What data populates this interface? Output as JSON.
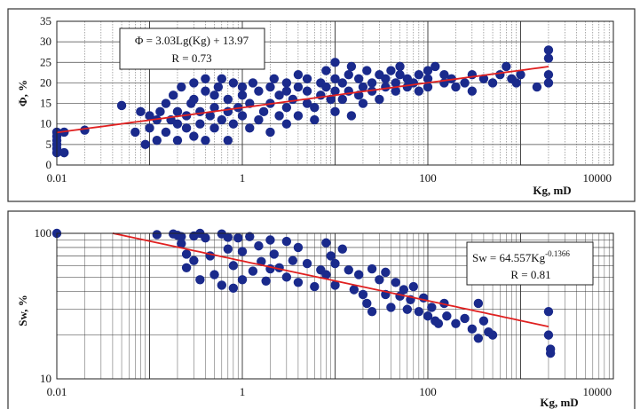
{
  "chart_data": [
    {
      "type": "scatter",
      "equation": "Φ = 3.03Lg(Kg) + 13.97",
      "r_label": "R = 0.73",
      "ylabel": "Φ, %",
      "xlabel": "Kg, mD",
      "xscale": "log",
      "xlim": [
        0.01,
        10000
      ],
      "ylim": [
        0,
        35
      ],
      "xticks": [
        "0.01",
        "1",
        "100",
        "10000"
      ],
      "yticks": [
        "0",
        "5",
        "10",
        "15",
        "20",
        "25",
        "30",
        "35"
      ],
      "grid": true,
      "trendline": {
        "a": 3.03,
        "b": 13.97,
        "from": 0.01,
        "to": 2000
      },
      "colors": {
        "points": "#1a2a8c",
        "trend": "#e02020"
      },
      "points": [
        [
          0.01,
          3
        ],
        [
          0.01,
          4
        ],
        [
          0.01,
          5
        ],
        [
          0.01,
          6
        ],
        [
          0.01,
          7
        ],
        [
          0.01,
          8
        ],
        [
          0.012,
          3
        ],
        [
          0.012,
          8
        ],
        [
          0.02,
          8.5
        ],
        [
          0.05,
          14.5
        ],
        [
          0.07,
          8
        ],
        [
          0.08,
          13
        ],
        [
          0.09,
          5
        ],
        [
          0.1,
          9
        ],
        [
          0.1,
          12
        ],
        [
          0.12,
          6
        ],
        [
          0.12,
          11
        ],
        [
          0.13,
          13
        ],
        [
          0.15,
          8
        ],
        [
          0.15,
          15
        ],
        [
          0.17,
          11
        ],
        [
          0.18,
          17
        ],
        [
          0.2,
          6
        ],
        [
          0.2,
          10
        ],
        [
          0.2,
          13
        ],
        [
          0.22,
          19
        ],
        [
          0.25,
          9
        ],
        [
          0.25,
          12
        ],
        [
          0.28,
          15
        ],
        [
          0.3,
          7
        ],
        [
          0.3,
          16
        ],
        [
          0.3,
          20
        ],
        [
          0.35,
          10
        ],
        [
          0.35,
          13
        ],
        [
          0.4,
          6
        ],
        [
          0.4,
          18
        ],
        [
          0.4,
          21
        ],
        [
          0.45,
          12
        ],
        [
          0.5,
          9
        ],
        [
          0.5,
          14
        ],
        [
          0.5,
          17
        ],
        [
          0.55,
          19
        ],
        [
          0.6,
          11
        ],
        [
          0.6,
          21
        ],
        [
          0.7,
          6
        ],
        [
          0.7,
          13
        ],
        [
          0.7,
          16
        ],
        [
          0.8,
          20
        ],
        [
          0.8,
          10
        ],
        [
          0.9,
          14
        ],
        [
          1,
          12
        ],
        [
          1,
          17
        ],
        [
          1,
          19
        ],
        [
          1.2,
          9
        ],
        [
          1.2,
          15
        ],
        [
          1.3,
          20
        ],
        [
          1.5,
          11
        ],
        [
          1.5,
          18
        ],
        [
          1.7,
          13
        ],
        [
          2,
          8
        ],
        [
          2,
          15
        ],
        [
          2,
          19
        ],
        [
          2.2,
          21
        ],
        [
          2.5,
          12
        ],
        [
          2.5,
          17
        ],
        [
          3,
          10
        ],
        [
          3,
          14
        ],
        [
          3,
          18
        ],
        [
          3,
          20
        ],
        [
          3.5,
          16
        ],
        [
          4,
          12
        ],
        [
          4,
          19
        ],
        [
          4,
          22
        ],
        [
          5,
          15
        ],
        [
          5,
          18
        ],
        [
          5,
          21
        ],
        [
          6,
          11
        ],
        [
          6,
          14
        ],
        [
          7,
          17
        ],
        [
          7,
          20
        ],
        [
          8,
          19
        ],
        [
          8,
          23
        ],
        [
          9,
          16
        ],
        [
          10,
          13
        ],
        [
          10,
          18
        ],
        [
          10,
          21
        ],
        [
          10,
          25
        ],
        [
          12,
          16
        ],
        [
          12,
          20
        ],
        [
          14,
          18
        ],
        [
          14,
          22
        ],
        [
          15,
          12
        ],
        [
          15,
          24
        ],
        [
          18,
          17
        ],
        [
          18,
          21
        ],
        [
          20,
          15
        ],
        [
          20,
          19
        ],
        [
          22,
          23
        ],
        [
          25,
          20
        ],
        [
          25,
          18
        ],
        [
          30,
          16
        ],
        [
          30,
          22
        ],
        [
          35,
          19
        ],
        [
          35,
          21
        ],
        [
          40,
          23
        ],
        [
          45,
          18
        ],
        [
          45,
          20
        ],
        [
          50,
          22
        ],
        [
          50,
          24
        ],
        [
          60,
          19
        ],
        [
          60,
          21
        ],
        [
          70,
          20
        ],
        [
          80,
          22
        ],
        [
          80,
          18
        ],
        [
          100,
          19
        ],
        [
          100,
          21
        ],
        [
          100,
          23
        ],
        [
          120,
          24
        ],
        [
          150,
          20
        ],
        [
          150,
          22
        ],
        [
          180,
          21
        ],
        [
          200,
          19
        ],
        [
          250,
          20
        ],
        [
          300,
          18
        ],
        [
          300,
          22
        ],
        [
          400,
          21
        ],
        [
          500,
          20
        ],
        [
          600,
          22
        ],
        [
          700,
          24
        ],
        [
          800,
          21
        ],
        [
          900,
          20
        ],
        [
          1000,
          22
        ],
        [
          1500,
          19
        ],
        [
          2000,
          20
        ],
        [
          2000,
          22
        ],
        [
          2000,
          26
        ],
        [
          2000,
          28
        ]
      ]
    },
    {
      "type": "scatter",
      "equation_base": "Sw = 64.557Kg",
      "equation_exp": "-0.1366",
      "r_label": "R = 0.81",
      "ylabel": "Sw, %",
      "xlabel": "Kg, mD",
      "xscale": "log",
      "yscale": "log",
      "xlim": [
        0.01,
        10000
      ],
      "ylim": [
        10,
        100
      ],
      "xticks": [
        "0.01",
        "1",
        "100",
        "10000"
      ],
      "yticks": [
        "10",
        "100"
      ],
      "grid": true,
      "trendline": {
        "a": 64.557,
        "b": -0.1366,
        "from": 0.04,
        "to": 2000
      },
      "colors": {
        "points": "#1a2a8c",
        "trend": "#e02020"
      },
      "points": [
        [
          0.01,
          100
        ],
        [
          0.12,
          98
        ],
        [
          0.18,
          99
        ],
        [
          0.2,
          97
        ],
        [
          0.22,
          95
        ],
        [
          0.22,
          85
        ],
        [
          0.25,
          72
        ],
        [
          0.25,
          58
        ],
        [
          0.3,
          96
        ],
        [
          0.3,
          65
        ],
        [
          0.35,
          100
        ],
        [
          0.35,
          48
        ],
        [
          0.4,
          93
        ],
        [
          0.45,
          70
        ],
        [
          0.5,
          52
        ],
        [
          0.6,
          99
        ],
        [
          0.6,
          44
        ],
        [
          0.7,
          94
        ],
        [
          0.7,
          78
        ],
        [
          0.8,
          60
        ],
        [
          0.8,
          42
        ],
        [
          0.9,
          93
        ],
        [
          1,
          75
        ],
        [
          1,
          48
        ],
        [
          1.2,
          95
        ],
        [
          1.3,
          55
        ],
        [
          1.5,
          82
        ],
        [
          1.6,
          64
        ],
        [
          1.8,
          47
        ],
        [
          2,
          90
        ],
        [
          2,
          57
        ],
        [
          2.2,
          72
        ],
        [
          2.5,
          58
        ],
        [
          3,
          88
        ],
        [
          3,
          50
        ],
        [
          3.5,
          65
        ],
        [
          4,
          80
        ],
        [
          4,
          46
        ],
        [
          5,
          62
        ],
        [
          6,
          43
        ],
        [
          7,
          56
        ],
        [
          8,
          86
        ],
        [
          8,
          52
        ],
        [
          9,
          70
        ],
        [
          10,
          62
        ],
        [
          10,
          44
        ],
        [
          12,
          78
        ],
        [
          14,
          56
        ],
        [
          16,
          41
        ],
        [
          18,
          52
        ],
        [
          20,
          38
        ],
        [
          22,
          33
        ],
        [
          25,
          57
        ],
        [
          25,
          29
        ],
        [
          30,
          48
        ],
        [
          35,
          54
        ],
        [
          35,
          38
        ],
        [
          40,
          31
        ],
        [
          45,
          46
        ],
        [
          50,
          37
        ],
        [
          55,
          41
        ],
        [
          60,
          30
        ],
        [
          65,
          35
        ],
        [
          70,
          43
        ],
        [
          80,
          29
        ],
        [
          90,
          36
        ],
        [
          100,
          27
        ],
        [
          110,
          31
        ],
        [
          120,
          25
        ],
        [
          130,
          24
        ],
        [
          150,
          33
        ],
        [
          160,
          27
        ],
        [
          200,
          24
        ],
        [
          250,
          26
        ],
        [
          300,
          22
        ],
        [
          350,
          33
        ],
        [
          350,
          19
        ],
        [
          400,
          25
        ],
        [
          450,
          21
        ],
        [
          500,
          20
        ],
        [
          2000,
          29
        ],
        [
          2000,
          20
        ],
        [
          2100,
          16
        ],
        [
          2100,
          15
        ]
      ]
    }
  ]
}
